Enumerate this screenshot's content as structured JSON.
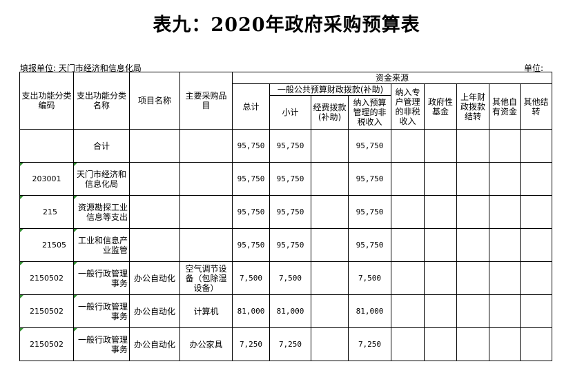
{
  "title": "表九：2020年政府采购预算表",
  "unit_left": "填报单位: 天门市经济和信息化局",
  "unit_right": "单位:",
  "headers": {
    "code": "支出功能分类编码",
    "func_name": "支出功能分类名称",
    "project": "项目名称",
    "purchase": "主要采购品目",
    "funding": "资金来源",
    "total": "总计",
    "general": "一般公共预算财政拨款(补助)",
    "subtotal": "小计",
    "funds_alloc": "经费拨款(补助)",
    "budget_nontax": "纳入预算管理的非税收入",
    "special_nontax": "纳入专户管理的非税收入",
    "gov_fund": "政府性基金",
    "prev_year": "上年财政拨款结转",
    "self_funds": "其他自有资金",
    "other_carry": "其他结转"
  },
  "rows": [
    {
      "code": "",
      "name": "合计",
      "project": "",
      "item": "",
      "total": "95,750",
      "subtotal": "95,750",
      "budget": "95,750"
    },
    {
      "code": "203001",
      "name": "天门市经济和信息化局",
      "project": "",
      "item": "",
      "total": "95,750",
      "subtotal": "95,750",
      "budget": "95,750"
    },
    {
      "code": "215",
      "name": "资源勘探工业信息等支出",
      "project": "",
      "item": "",
      "total": "95,750",
      "subtotal": "95,750",
      "budget": "95,750"
    },
    {
      "code": "21505",
      "name": "工业和信息产业监管",
      "project": "",
      "item": "",
      "total": "95,750",
      "subtotal": "95,750",
      "budget": "95,750"
    },
    {
      "code": "2150502",
      "name": "一般行政管理事务",
      "project": "办公自动化",
      "item": "空气调节设备（包除湿设备）",
      "total": "7,500",
      "subtotal": "7,500",
      "budget": "7,500"
    },
    {
      "code": "2150502",
      "name": "一般行政管理事务",
      "project": "办公自动化",
      "item": "计算机",
      "total": "81,000",
      "subtotal": "81,000",
      "budget": "81,000"
    },
    {
      "code": "2150502",
      "name": "一般行政管理事务",
      "project": "办公自动化",
      "item": "办公家具",
      "total": "7,250",
      "subtotal": "7,250",
      "budget": "7,250"
    }
  ]
}
